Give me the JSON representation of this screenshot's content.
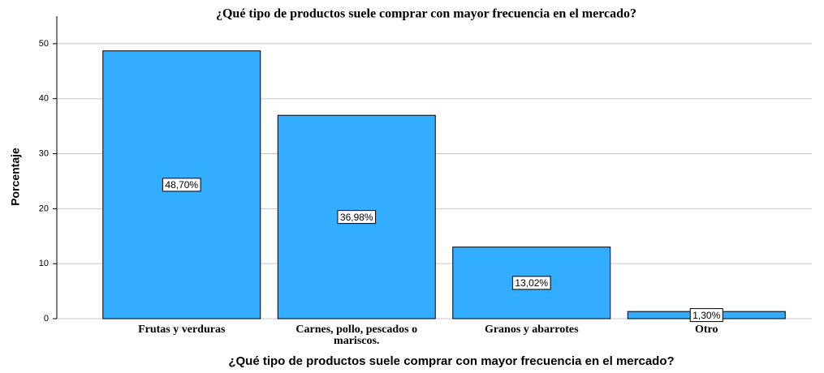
{
  "chart_data": {
    "type": "bar",
    "title": "¿Qué tipo de productos suele comprar con mayor frecuencia en el mercado?",
    "x_label": "¿Qué tipo de productos suele comprar con mayor frecuencia en el mercado?",
    "y_label": "Porcentaje",
    "categories": [
      "Frutas y verduras",
      "Carnes, pollo, pescados o mariscos.",
      "Granos y abarrotes",
      "Otro"
    ],
    "values": [
      48.7,
      36.98,
      13.02,
      1.3
    ],
    "value_labels": [
      "48,70%",
      "36,98%",
      "13,02%",
      "1,30%"
    ],
    "color": "#33adff",
    "ylim": [
      0,
      55
    ],
    "yticks": [
      0,
      10,
      20,
      30,
      40,
      50
    ],
    "grid": true
  }
}
